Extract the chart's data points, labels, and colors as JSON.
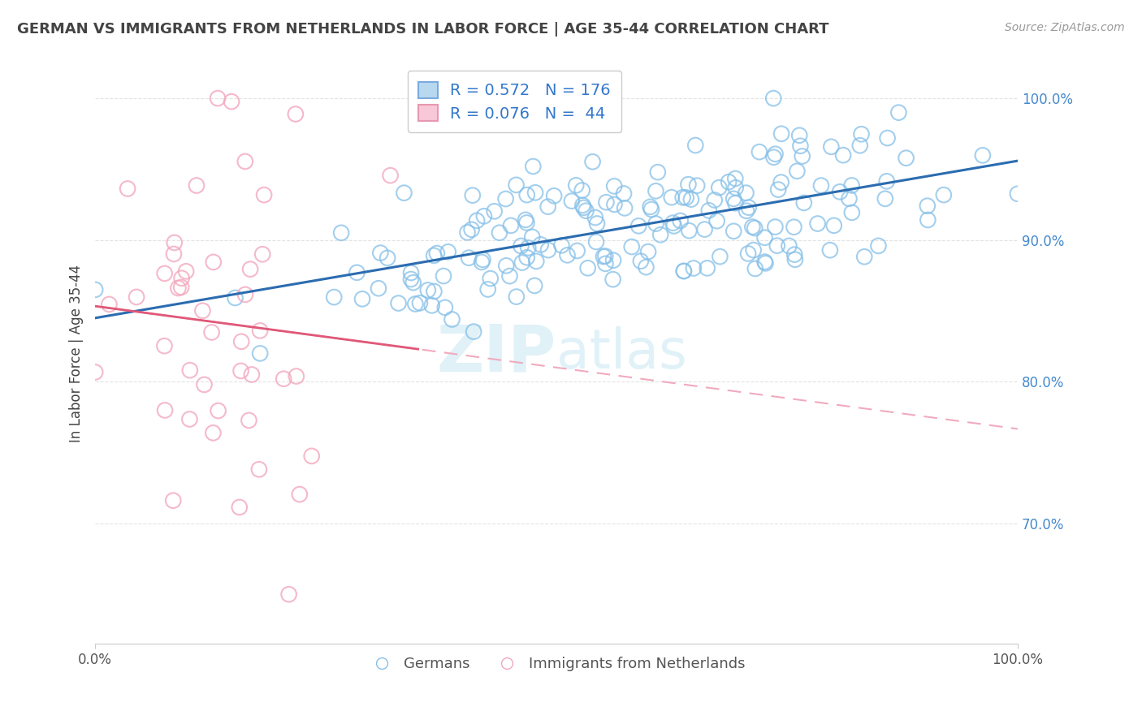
{
  "title": "GERMAN VS IMMIGRANTS FROM NETHERLANDS IN LABOR FORCE | AGE 35-44 CORRELATION CHART",
  "source": "Source: ZipAtlas.com",
  "ylabel": "In Labor Force | Age 35-44",
  "xlim": [
    0.0,
    1.0
  ],
  "ylim": [
    0.615,
    1.025
  ],
  "blue_R": 0.572,
  "blue_N": 176,
  "pink_R": 0.076,
  "pink_N": 44,
  "blue_color": "#85bfe8",
  "pink_color": "#f2a8be",
  "blue_line_color": "#2b6cb0",
  "pink_line_solid_color": "#e05878",
  "pink_line_dash_color": "#f0aabe",
  "background_color": "#ffffff",
  "grid_color": "#dddddd",
  "title_color": "#444444",
  "watermark_color": "#cce8f4",
  "ytick_labels": [
    "70.0%",
    "80.0%",
    "90.0%",
    "100.0%"
  ],
  "ytick_values": [
    0.7,
    0.8,
    0.9,
    1.0
  ],
  "xtick_labels": [
    "0.0%",
    "100.0%"
  ],
  "xtick_values": [
    0.0,
    1.0
  ],
  "legend_label_blue": "R = 0.572   N = 176",
  "legend_label_pink": "R = 0.076   N =  44",
  "legend_text_color": "#3377cc"
}
